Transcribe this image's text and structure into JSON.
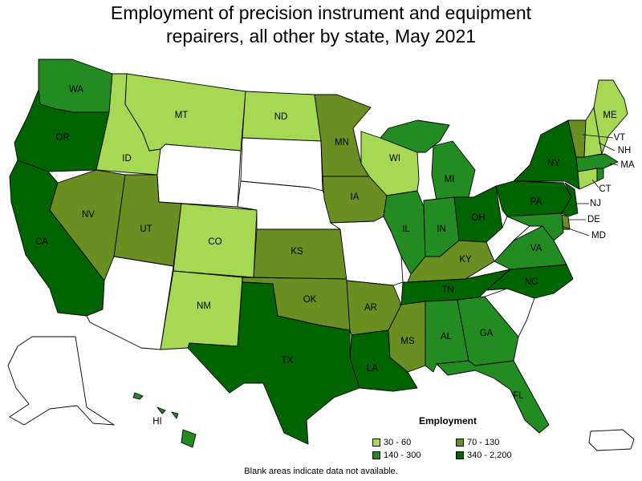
{
  "title": {
    "line1": "Employment of precision instrument and equipment",
    "line2": "repairers, all other by state, May 2021"
  },
  "legend": {
    "title": "Employment",
    "items": [
      {
        "label": "30 - 60",
        "color": "#a6d854"
      },
      {
        "label": "70 - 130",
        "color": "#6b8e23"
      },
      {
        "label": "140 - 300",
        "color": "#228b22"
      },
      {
        "label": "340 - 2,200",
        "color": "#006400"
      }
    ]
  },
  "footnote": "Blank areas indicate data not available.",
  "colors": {
    "no_data": "#ffffff",
    "30-60": "#a6d854",
    "70-130": "#6b8e23",
    "140-300": "#228b22",
    "340-2200": "#006400"
  },
  "states": [
    {
      "abbr": "WA",
      "category": "140-300"
    },
    {
      "abbr": "OR",
      "category": "340-2200"
    },
    {
      "abbr": "CA",
      "category": "340-2200"
    },
    {
      "abbr": "ID",
      "category": "30-60"
    },
    {
      "abbr": "NV",
      "category": "70-130"
    },
    {
      "abbr": "MT",
      "category": "30-60"
    },
    {
      "abbr": "WY",
      "category": "no_data"
    },
    {
      "abbr": "UT",
      "category": "70-130"
    },
    {
      "abbr": "AZ",
      "category": "no_data"
    },
    {
      "abbr": "CO",
      "category": "30-60"
    },
    {
      "abbr": "NM",
      "category": "30-60"
    },
    {
      "abbr": "ND",
      "category": "30-60"
    },
    {
      "abbr": "SD",
      "category": "no_data"
    },
    {
      "abbr": "NE",
      "category": "no_data"
    },
    {
      "abbr": "KS",
      "category": "70-130"
    },
    {
      "abbr": "OK",
      "category": "70-130"
    },
    {
      "abbr": "TX",
      "category": "340-2200"
    },
    {
      "abbr": "MN",
      "category": "70-130"
    },
    {
      "abbr": "IA",
      "category": "70-130"
    },
    {
      "abbr": "MO",
      "category": "no_data"
    },
    {
      "abbr": "AR",
      "category": "70-130"
    },
    {
      "abbr": "LA",
      "category": "340-2200"
    },
    {
      "abbr": "WI",
      "category": "30-60"
    },
    {
      "abbr": "IL",
      "category": "140-300"
    },
    {
      "abbr": "MI",
      "category": "140-300"
    },
    {
      "abbr": "IN",
      "category": "140-300"
    },
    {
      "abbr": "OH",
      "category": "340-2200"
    },
    {
      "abbr": "KY",
      "category": "70-130"
    },
    {
      "abbr": "TN",
      "category": "340-2200"
    },
    {
      "abbr": "MS",
      "category": "70-130"
    },
    {
      "abbr": "AL",
      "category": "140-300"
    },
    {
      "abbr": "GA",
      "category": "140-300"
    },
    {
      "abbr": "FL",
      "category": "140-300"
    },
    {
      "abbr": "SC",
      "category": "no_data"
    },
    {
      "abbr": "NC",
      "category": "340-2200"
    },
    {
      "abbr": "VA",
      "category": "140-300"
    },
    {
      "abbr": "WV",
      "category": "no_data"
    },
    {
      "abbr": "PA",
      "category": "340-2200"
    },
    {
      "abbr": "NY",
      "category": "340-2200"
    },
    {
      "abbr": "NJ",
      "category": "340-2200"
    },
    {
      "abbr": "DE",
      "category": "70-130"
    },
    {
      "abbr": "MD",
      "category": "140-300"
    },
    {
      "abbr": "CT",
      "category": "30-60"
    },
    {
      "abbr": "RI",
      "category": "140-300"
    },
    {
      "abbr": "MA",
      "category": "140-300"
    },
    {
      "abbr": "VT",
      "category": "70-130"
    },
    {
      "abbr": "NH",
      "category": "30-60"
    },
    {
      "abbr": "ME",
      "category": "30-60"
    },
    {
      "abbr": "AK",
      "category": "no_data"
    },
    {
      "abbr": "HI",
      "category": "140-300"
    },
    {
      "abbr": "PR",
      "category": "no_data"
    }
  ]
}
